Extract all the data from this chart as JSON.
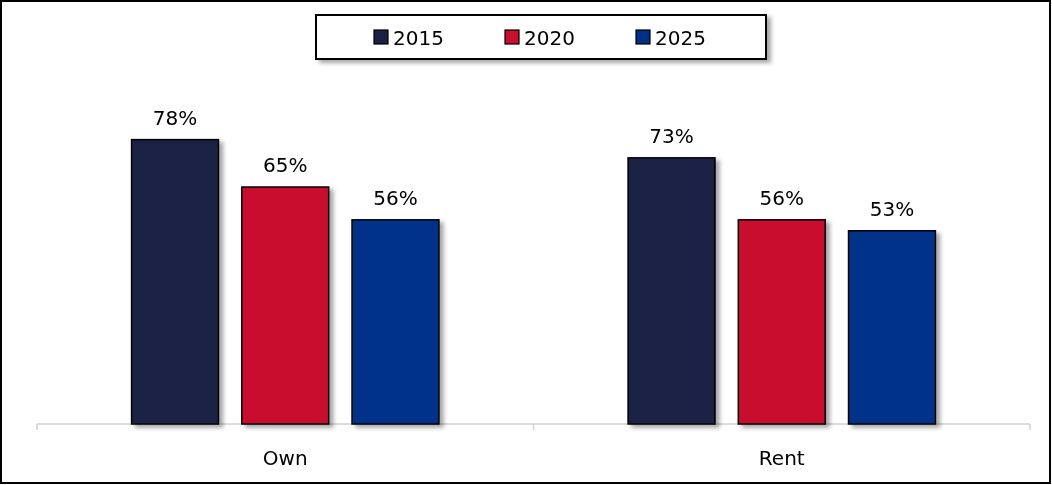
{
  "chart_data": {
    "type": "bar",
    "categories": [
      "Own",
      "Rent"
    ],
    "series": [
      {
        "name": "2015",
        "color": "#1c2044",
        "values": [
          78,
          73
        ],
        "value_labels": [
          "78%",
          "73%"
        ]
      },
      {
        "name": "2020",
        "color": "#c8102e",
        "values": [
          65,
          56
        ],
        "value_labels": [
          "65%",
          "56%"
        ]
      },
      {
        "name": "2025",
        "color": "#00318a",
        "values": [
          56,
          53
        ],
        "value_labels": [
          "56%",
          "53%"
        ]
      }
    ],
    "legend": "top"
  }
}
